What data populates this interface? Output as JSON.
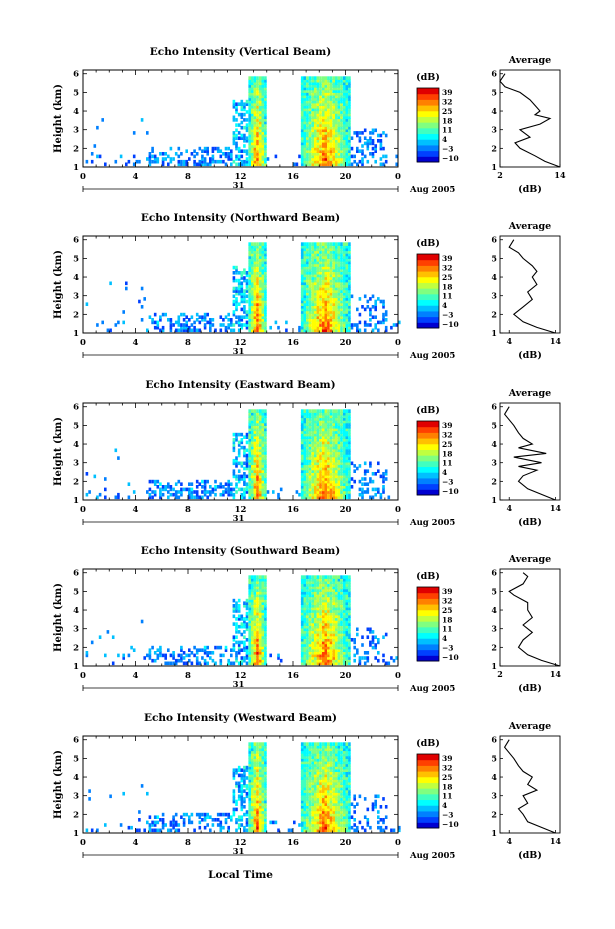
{
  "figure": {
    "xlabel": "Local Time",
    "colorbar_unit": "(dB)",
    "colorbar_ticks": [
      "39",
      "32",
      "25",
      "18",
      "11",
      "4",
      "−3",
      "−10"
    ],
    "colormap": [
      "#0000d0",
      "#0040ff",
      "#0080ff",
      "#00c0ff",
      "#00ffff",
      "#40ffc0",
      "#80ff80",
      "#c0ff40",
      "#ffff00",
      "#ffc000",
      "#ff8000",
      "#ff4000",
      "#e00000"
    ],
    "average_title": "Average",
    "average_xlabel": "(dB)",
    "day_label": "31",
    "month_label": "Aug 2005"
  },
  "chart_data": [
    {
      "type": "heatmap",
      "title": "Echo Intensity (Vertical Beam)",
      "ylabel": "Height (km)",
      "x_ticks": [
        "0",
        "4",
        "8",
        "12",
        "16",
        "20",
        "0"
      ],
      "xlim": [
        0,
        24
      ],
      "y_ticks": [
        "1",
        "2",
        "3",
        "4",
        "5",
        "6"
      ],
      "ylim": [
        1,
        6.2
      ],
      "color_range_dB": [
        -10,
        39
      ],
      "rain_bands_hours": [
        [
          12.5,
          13.9
        ],
        [
          16.5,
          20.2
        ]
      ],
      "echo_base_km": 1.1,
      "echo_top_km": 5.8,
      "average_profile": {
        "xlim": [
          2,
          14
        ],
        "x_ticks": [
          "2",
          "14"
        ],
        "height_km": [
          1.0,
          1.3,
          1.6,
          2.0,
          2.3,
          2.6,
          3.0,
          3.3,
          3.6,
          3.8,
          4.0,
          4.3,
          4.6,
          5.0,
          5.3,
          5.6,
          6.0
        ],
        "value_dB": [
          14,
          11,
          9,
          6,
          5,
          8,
          6,
          10,
          12,
          9,
          10,
          9,
          8,
          6,
          3,
          2,
          3
        ]
      }
    },
    {
      "type": "heatmap",
      "title": "Echo Intensity (Northward Beam)",
      "ylabel": "Height (km)",
      "x_ticks": [
        "0",
        "4",
        "8",
        "12",
        "16",
        "20",
        "0"
      ],
      "xlim": [
        0,
        24
      ],
      "y_ticks": [
        "1",
        "2",
        "3",
        "4",
        "5",
        "6"
      ],
      "ylim": [
        1,
        6.2
      ],
      "color_range_dB": [
        -10,
        39
      ],
      "rain_bands_hours": [
        [
          12.5,
          13.9
        ],
        [
          16.5,
          20.2
        ]
      ],
      "echo_base_km": 1.1,
      "echo_top_km": 5.8,
      "average_profile": {
        "xlim": [
          2,
          15
        ],
        "x_ticks": [
          "4",
          "14"
        ],
        "height_km": [
          1.0,
          1.3,
          1.6,
          2.0,
          2.4,
          2.8,
          3.2,
          3.6,
          4.0,
          4.3,
          4.6,
          5.0,
          5.3,
          5.6,
          6.0
        ],
        "value_dB": [
          14,
          10,
          7,
          5,
          7,
          9,
          8,
          10,
          9,
          10,
          9,
          7,
          6,
          4,
          5
        ]
      }
    },
    {
      "type": "heatmap",
      "title": "Echo Intensity (Eastward Beam)",
      "ylabel": "Height (km)",
      "x_ticks": [
        "0",
        "4",
        "8",
        "12",
        "16",
        "20",
        "0"
      ],
      "xlim": [
        0,
        24
      ],
      "y_ticks": [
        "1",
        "2",
        "3",
        "4",
        "5",
        "6"
      ],
      "ylim": [
        1,
        6.2
      ],
      "color_range_dB": [
        -10,
        39
      ],
      "rain_bands_hours": [
        [
          12.5,
          13.9
        ],
        [
          16.5,
          20.2
        ]
      ],
      "echo_base_km": 1.1,
      "echo_top_km": 5.8,
      "average_profile": {
        "xlim": [
          2,
          15
        ],
        "x_ticks": [
          "4",
          "14"
        ],
        "height_km": [
          1.0,
          1.3,
          1.6,
          2.0,
          2.3,
          2.6,
          2.8,
          3.0,
          3.3,
          3.5,
          3.8,
          4.0,
          4.3,
          4.6,
          5.0,
          5.3,
          5.6,
          6.0
        ],
        "value_dB": [
          14,
          11,
          8,
          6,
          7,
          10,
          6,
          11,
          5,
          12,
          6,
          9,
          7,
          6,
          5,
          4,
          3,
          4
        ]
      }
    },
    {
      "type": "heatmap",
      "title": "Echo Intensity (Southward Beam)",
      "ylabel": "Height (km)",
      "x_ticks": [
        "0",
        "4",
        "8",
        "12",
        "16",
        "20",
        "0"
      ],
      "xlim": [
        0,
        24
      ],
      "y_ticks": [
        "1",
        "2",
        "3",
        "4",
        "5",
        "6"
      ],
      "ylim": [
        1,
        6.2
      ],
      "color_range_dB": [
        -10,
        39
      ],
      "rain_bands_hours": [
        [
          12.5,
          13.9
        ],
        [
          16.5,
          20.2
        ]
      ],
      "echo_base_km": 1.1,
      "echo_top_km": 5.8,
      "average_profile": {
        "xlim": [
          2,
          15
        ],
        "x_ticks": [
          "2",
          "14"
        ],
        "height_km": [
          1.0,
          1.3,
          1.6,
          2.0,
          2.4,
          2.8,
          3.2,
          3.6,
          4.0,
          4.4,
          4.8,
          5.0,
          5.4,
          5.8,
          6.0
        ],
        "value_dB": [
          15,
          11,
          8,
          6,
          7,
          9,
          7,
          9,
          8,
          8,
          5,
          4,
          7,
          8,
          7
        ]
      }
    },
    {
      "type": "heatmap",
      "title": "Echo Intensity (Westward Beam)",
      "ylabel": "Height (km)",
      "x_ticks": [
        "0",
        "4",
        "8",
        "12",
        "16",
        "20",
        "0"
      ],
      "xlim": [
        0,
        24
      ],
      "y_ticks": [
        "1",
        "2",
        "3",
        "4",
        "5",
        "6"
      ],
      "ylim": [
        1,
        6.2
      ],
      "color_range_dB": [
        -10,
        39
      ],
      "rain_bands_hours": [
        [
          12.5,
          13.9
        ],
        [
          16.5,
          20.2
        ]
      ],
      "echo_base_km": 1.1,
      "echo_top_km": 5.8,
      "average_profile": {
        "xlim": [
          2,
          15
        ],
        "x_ticks": [
          "4",
          "14"
        ],
        "height_km": [
          1.0,
          1.3,
          1.6,
          2.0,
          2.3,
          2.6,
          3.0,
          3.3,
          3.6,
          4.0,
          4.3,
          4.6,
          5.0,
          5.3,
          5.6,
          6.0
        ],
        "value_dB": [
          14,
          11,
          8,
          7,
          6,
          8,
          7,
          10,
          8,
          9,
          7,
          6,
          5,
          4,
          3,
          4
        ]
      }
    }
  ]
}
